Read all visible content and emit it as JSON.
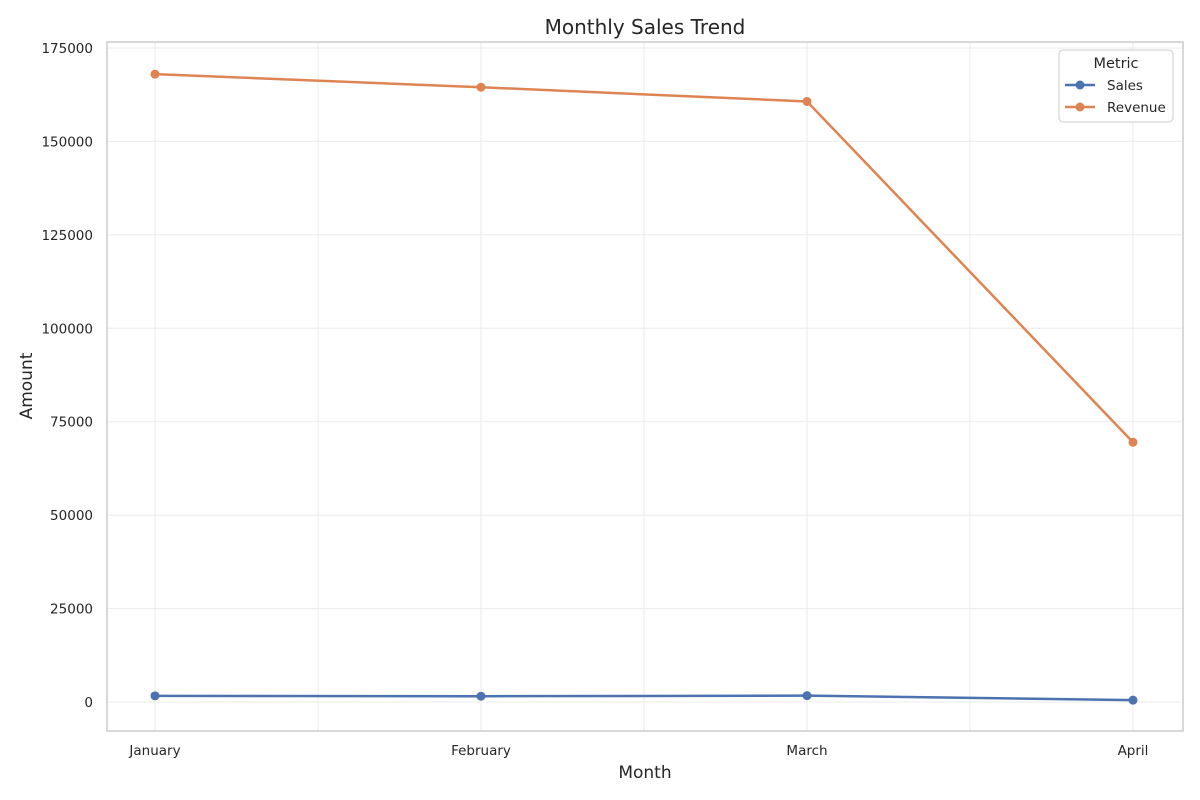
{
  "chart_data": {
    "type": "line",
    "title": "Monthly Sales Trend",
    "xlabel": "Month",
    "ylabel": "Amount",
    "categories": [
      "January",
      "February",
      "March",
      "April"
    ],
    "ylim": [
      -7500,
      177000
    ],
    "yticks": [
      0,
      25000,
      50000,
      75000,
      100000,
      125000,
      150000,
      175000
    ],
    "grid": true,
    "legend": {
      "title": "Metric",
      "placement": "top-right"
    },
    "series": [
      {
        "name": "Sales",
        "color": "#4c72b0",
        "values": [
          1650,
          1550,
          1700,
          500
        ]
      },
      {
        "name": "Revenue",
        "color": "#dd8452",
        "values": [
          168000,
          164500,
          160700,
          69500
        ]
      }
    ]
  }
}
